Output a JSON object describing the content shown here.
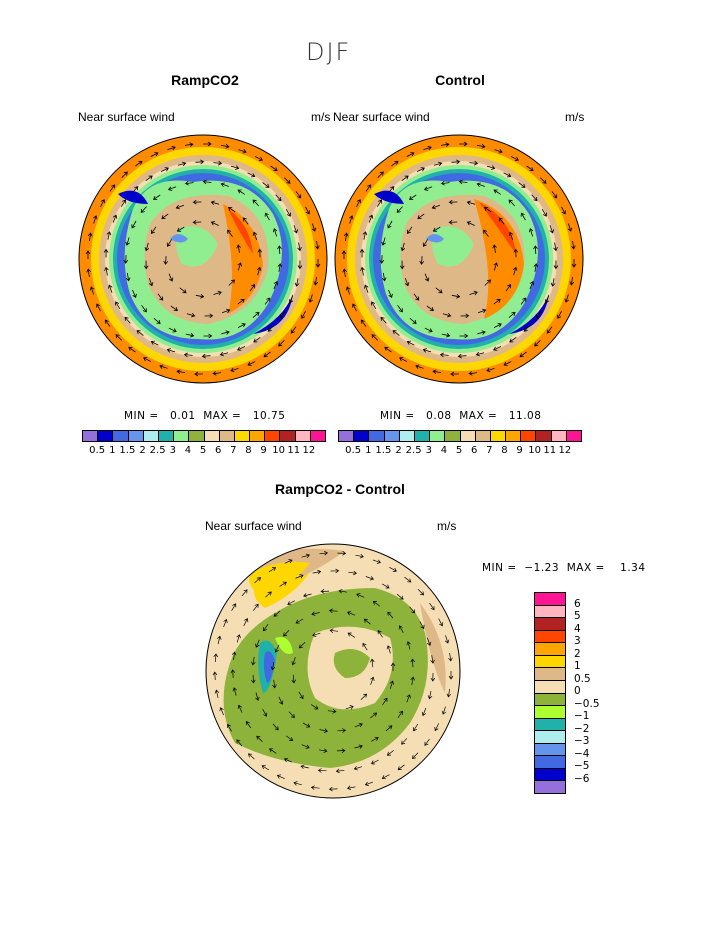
{
  "header": {
    "title": "DJF"
  },
  "panels": [
    {
      "title": "RampCO2",
      "left_label": "Near surface wind",
      "right_label": "m/s",
      "min_label": "MIN =",
      "min": "0.01",
      "max_label": "MAX =",
      "max": "10.75"
    },
    {
      "title": "Control",
      "left_label": "Near surface wind",
      "right_label": "m/s",
      "min_label": "MIN =",
      "min": "0.08",
      "max_label": "MAX =",
      "max": "11.08"
    },
    {
      "title": "RampCO2 - Control",
      "left_label": "Near surface wind",
      "right_label": "m/s",
      "min_label": "MIN =",
      "min": "−1.23",
      "max_label": "MAX =",
      "max": "1.34"
    }
  ],
  "colorbar_abs": {
    "colors": [
      "#9370db",
      "#0000cd",
      "#4169e1",
      "#6495ed",
      "#afeeee",
      "#20b2aa",
      "#90ee90",
      "#8db33a",
      "#f5deb3",
      "#deb887",
      "#ffd700",
      "#ffa500",
      "#ff4500",
      "#b22222",
      "#ffb6c1",
      "#ff1493"
    ],
    "labels": [
      "0.5",
      "1",
      "1.5",
      "2",
      "2.5",
      "3",
      "4",
      "5",
      "6",
      "7",
      "8",
      "9",
      "10",
      "11",
      "12"
    ]
  },
  "colorbar_diff": {
    "colors": [
      "#ff1493",
      "#ffb6c1",
      "#b22222",
      "#ff4500",
      "#ffa500",
      "#ffd700",
      "#deb887",
      "#f5deb3",
      "#8db33a",
      "#adff2f",
      "#20b2aa",
      "#afeeee",
      "#6495ed",
      "#4169e1",
      "#0000cd",
      "#9370db"
    ],
    "labels": [
      "6",
      "5",
      "4",
      "3",
      "2",
      "1",
      "0.5",
      "0",
      "−0.5",
      "−1",
      "−2",
      "−3",
      "−4",
      "−5",
      "−6"
    ]
  },
  "chart_data": [
    {
      "type": "heatmap",
      "projection": "south-polar-stereographic",
      "title": "RampCO2",
      "variable": "Near surface wind",
      "units": "m/s",
      "min": 0.01,
      "max": 10.75,
      "vectors": true
    },
    {
      "type": "heatmap",
      "projection": "south-polar-stereographic",
      "title": "Control",
      "variable": "Near surface wind",
      "units": "m/s",
      "min": 0.08,
      "max": 11.08,
      "vectors": true
    },
    {
      "type": "heatmap",
      "projection": "south-polar-stereographic",
      "title": "RampCO2 - Control",
      "variable": "Near surface wind",
      "units": "m/s",
      "min": -1.23,
      "max": 1.34,
      "vectors": true
    }
  ]
}
